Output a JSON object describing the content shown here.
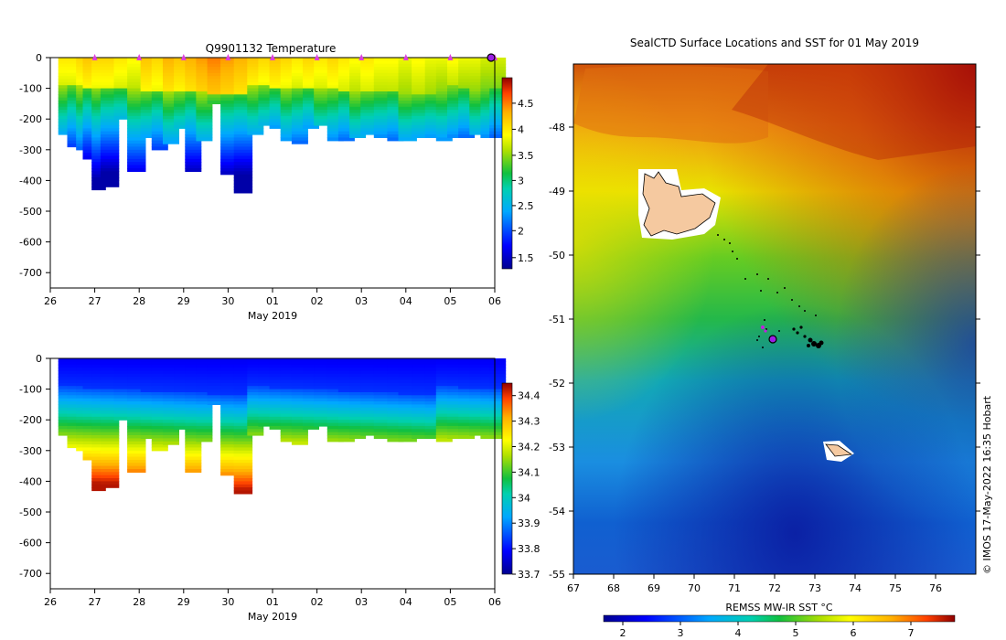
{
  "chart_data": [
    {
      "type": "heatmap",
      "title": "Q9901132  Temperature",
      "xlabel": "May 2019",
      "x_tick_labels": [
        "26",
        "27",
        "28",
        "29",
        "30",
        "01",
        "02",
        "03",
        "04",
        "05",
        "06"
      ],
      "ylim": [
        -750,
        0
      ],
      "y_ticks": [
        0,
        -100,
        -200,
        -300,
        -400,
        -500,
        -600,
        -700
      ],
      "colorbar": {
        "min": 1.2,
        "max": 5.0,
        "ticks": [
          1.5,
          2,
          2.5,
          3,
          3.5,
          4,
          4.5
        ]
      },
      "surface_markers_days": [
        1,
        2,
        3,
        4,
        5,
        6,
        7,
        8,
        9,
        10
      ],
      "profiles": [
        {
          "day": 0.3,
          "depth": 250,
          "surface": 4.0
        },
        {
          "day": 0.5,
          "depth": 285,
          "surface": 4.0
        },
        {
          "day": 0.7,
          "depth": 295,
          "surface": 4.1
        },
        {
          "day": 0.85,
          "depth": 330,
          "surface": 4.2
        },
        {
          "day": 1.05,
          "depth": 430,
          "surface": 4.1
        },
        {
          "day": 1.25,
          "depth": 415,
          "surface": 4.1
        },
        {
          "day": 1.55,
          "depth": 200,
          "surface": 4.0
        },
        {
          "day": 1.85,
          "depth": 370,
          "surface": 3.9
        },
        {
          "day": 2.15,
          "depth": 260,
          "surface": 4.2
        },
        {
          "day": 2.4,
          "depth": 300,
          "surface": 4.1
        },
        {
          "day": 2.65,
          "depth": 275,
          "surface": 4.3
        },
        {
          "day": 2.9,
          "depth": 230,
          "surface": 4.2
        },
        {
          "day": 3.15,
          "depth": 365,
          "surface": 4.3
        },
        {
          "day": 3.4,
          "depth": 270,
          "surface": 4.4
        },
        {
          "day": 3.65,
          "depth": 150,
          "surface": 4.5
        },
        {
          "day": 3.95,
          "depth": 380,
          "surface": 4.4
        },
        {
          "day": 4.25,
          "depth": 435,
          "surface": 4.3
        },
        {
          "day": 4.55,
          "depth": 245,
          "surface": 4.2
        },
        {
          "day": 4.8,
          "depth": 215,
          "surface": 4.1
        },
        {
          "day": 5.05,
          "depth": 230,
          "surface": 4.2
        },
        {
          "day": 5.3,
          "depth": 265,
          "surface": 4.1
        },
        {
          "day": 5.55,
          "depth": 275,
          "surface": 4.0
        },
        {
          "day": 5.8,
          "depth": 230,
          "surface": 4.1
        },
        {
          "day": 6.05,
          "depth": 215,
          "surface": 4.0
        },
        {
          "day": 6.35,
          "depth": 265,
          "surface": 4.1
        },
        {
          "day": 6.6,
          "depth": 270,
          "surface": 4.0
        },
        {
          "day": 6.85,
          "depth": 255,
          "surface": 3.9
        },
        {
          "day": 7.1,
          "depth": 250,
          "surface": 4.0
        },
        {
          "day": 7.4,
          "depth": 255,
          "surface": 3.9
        },
        {
          "day": 7.7,
          "depth": 265,
          "surface": 3.9
        },
        {
          "day": 7.95,
          "depth": 270,
          "surface": 3.8
        },
        {
          "day": 8.25,
          "depth": 255,
          "surface": 3.9
        },
        {
          "day": 8.55,
          "depth": 260,
          "surface": 3.8
        },
        {
          "day": 8.8,
          "depth": 265,
          "surface": 3.8
        },
        {
          "day": 9.05,
          "depth": 260,
          "surface": 3.9
        },
        {
          "day": 9.3,
          "depth": 255,
          "surface": 3.8
        },
        {
          "day": 9.55,
          "depth": 245,
          "surface": 3.8
        },
        {
          "day": 9.8,
          "depth": 255,
          "surface": 3.7
        },
        {
          "day": 10.0,
          "depth": 260,
          "surface": 3.7
        }
      ]
    },
    {
      "type": "heatmap",
      "title": "",
      "xlabel": "May 2019",
      "x_tick_labels": [
        "26",
        "27",
        "28",
        "29",
        "30",
        "01",
        "02",
        "03",
        "04",
        "05",
        "06"
      ],
      "ylim": [
        -750,
        0
      ],
      "y_ticks": [
        0,
        -100,
        -200,
        -300,
        -400,
        -500,
        -600,
        -700
      ],
      "colorbar": {
        "min": 33.7,
        "max": 34.45,
        "ticks": [
          33.7,
          33.8,
          33.9,
          34,
          34.1,
          34.2,
          34.3,
          34.4
        ]
      }
    },
    {
      "type": "heatmap",
      "title": "SealCTD Surface Locations and SST for 01 May 2019",
      "xlabel": "",
      "xlim": [
        67,
        77
      ],
      "ylim": [
        -55,
        -47.1
      ],
      "x_ticks": [
        67,
        68,
        69,
        70,
        71,
        72,
        73,
        74,
        75,
        76
      ],
      "y_ticks": [
        -48,
        -49,
        -50,
        -51,
        -52,
        -53,
        -54,
        -55
      ],
      "colorbar": {
        "label": "REMSS MW-IR SST °C",
        "min": 1.5,
        "max": 7.8,
        "ticks": [
          2,
          3,
          4,
          5,
          6,
          7
        ]
      },
      "current_position": {
        "lon": 71.95,
        "lat": -51.3
      },
      "credit": "© IMOS 17-May-2022 16:35 Hobart"
    }
  ]
}
